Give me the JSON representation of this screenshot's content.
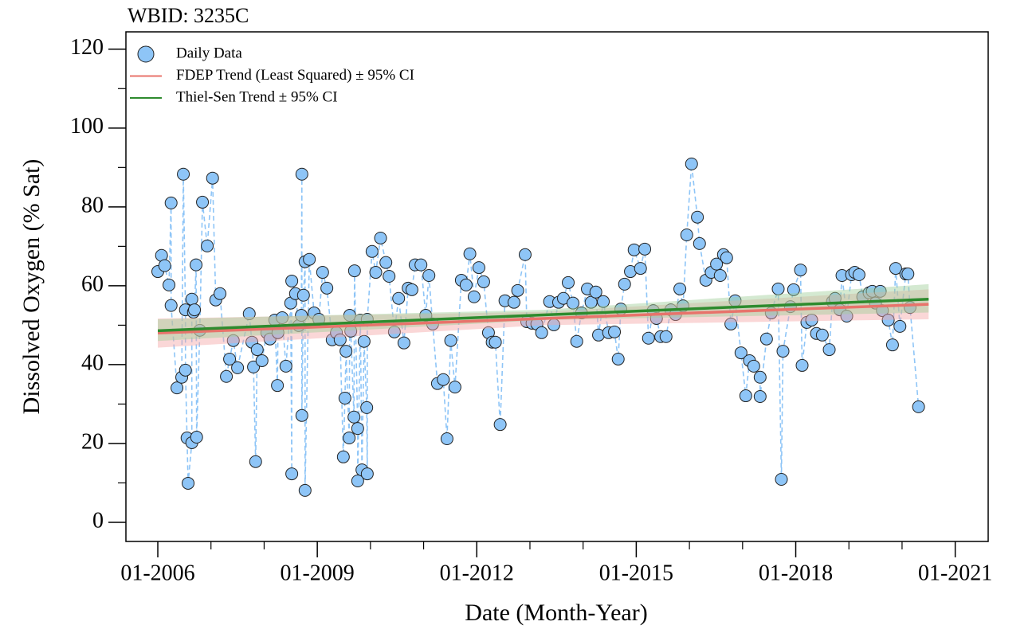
{
  "chart_data": {
    "type": "scatter",
    "title": "WBID: 3235C",
    "xlabel": "Date (Month-Year)",
    "ylabel": "Dissolved Oxygen (% Sat)",
    "xlim": [
      2005.4,
      2021.62
    ],
    "ylim": [
      -4.85,
      124.4
    ],
    "xticks": [
      {
        "value": 2006,
        "label": "01-2006"
      },
      {
        "value": 2009,
        "label": "01-2009"
      },
      {
        "value": 2012,
        "label": "01-2012"
      },
      {
        "value": 2015,
        "label": "01-2015"
      },
      {
        "value": 2018,
        "label": "01-2018"
      },
      {
        "value": 2021,
        "label": "01-2021"
      }
    ],
    "xminorticks": [
      2007,
      2008,
      2010,
      2011,
      2013,
      2014,
      2016,
      2017,
      2019,
      2020
    ],
    "yticks": [
      0,
      20,
      40,
      60,
      80,
      100,
      120
    ],
    "yminorticks": [
      10,
      30,
      50,
      70,
      90,
      110
    ],
    "legend": "top-left",
    "series": [
      {
        "name": "Daily Data",
        "type": "scatter",
        "color": "#8ec5f7",
        "x": [
          2006.0,
          2006.07,
          2006.13,
          2006.21,
          2006.25,
          2006.25,
          2006.36,
          2006.45,
          2006.48,
          2006.52,
          2006.52,
          2006.55,
          2006.57,
          2006.64,
          2006.64,
          2006.67,
          2006.69,
          2006.72,
          2006.73,
          2006.79,
          2006.84,
          2006.93,
          2007.03,
          2007.09,
          2007.17,
          2007.29,
          2007.35,
          2007.42,
          2007.5,
          2007.72,
          2007.77,
          2007.8,
          2007.84,
          2007.87,
          2007.96,
          2008.05,
          2008.11,
          2008.2,
          2008.25,
          2008.26,
          2008.34,
          2008.41,
          2008.5,
          2008.52,
          2008.52,
          2008.59,
          2008.65,
          2008.7,
          2008.71,
          2008.71,
          2008.74,
          2008.77,
          2008.77,
          2008.85,
          2008.94,
          2009.03,
          2009.1,
          2009.18,
          2009.28,
          2009.36,
          2009.43,
          2009.49,
          2009.52,
          2009.54,
          2009.6,
          2009.61,
          2009.63,
          2009.69,
          2009.7,
          2009.76,
          2009.76,
          2009.81,
          2009.84,
          2009.88,
          2009.93,
          2009.94,
          2009.94,
          2010.03,
          2010.1,
          2010.19,
          2010.29,
          2010.35,
          2010.45,
          2010.53,
          2010.63,
          2010.71,
          2010.78,
          2010.84,
          2010.95,
          2011.04,
          2011.1,
          2011.17,
          2011.26,
          2011.37,
          2011.44,
          2011.51,
          2011.59,
          2011.71,
          2011.8,
          2011.87,
          2011.95,
          2012.04,
          2012.13,
          2012.22,
          2012.29,
          2012.35,
          2012.44,
          2012.53,
          2012.7,
          2012.77,
          2012.91,
          2012.94,
          2013.04,
          2013.13,
          2013.22,
          2013.37,
          2013.45,
          2013.54,
          2013.63,
          2013.72,
          2013.81,
          2013.88,
          2013.97,
          2014.08,
          2014.15,
          2014.24,
          2014.29,
          2014.38,
          2014.48,
          2014.59,
          2014.66,
          2014.71,
          2014.78,
          2014.89,
          2014.96,
          2015.08,
          2015.16,
          2015.23,
          2015.32,
          2015.38,
          2015.46,
          2015.56,
          2015.65,
          2015.74,
          2015.82,
          2015.88,
          2015.95,
          2016.04,
          2016.15,
          2016.19,
          2016.31,
          2016.41,
          2016.51,
          2016.58,
          2016.64,
          2016.7,
          2016.78,
          2016.86,
          2016.97,
          2017.06,
          2017.13,
          2017.21,
          2017.33,
          2017.33,
          2017.45,
          2017.54,
          2017.67,
          2017.73,
          2017.76,
          2017.9,
          2017.96,
          2018.09,
          2018.12,
          2018.21,
          2018.3,
          2018.39,
          2018.5,
          2018.63,
          2018.69,
          2018.74,
          2018.83,
          2018.87,
          2018.96,
          2019.05,
          2019.11,
          2019.19,
          2019.26,
          2019.38,
          2019.44,
          2019.5,
          2019.59,
          2019.63,
          2019.74,
          2019.82,
          2019.88,
          2019.96,
          2020.07,
          2020.11,
          2020.15,
          2020.31
        ],
        "values": [
          63.6,
          67.7,
          65.1,
          60.2,
          81,
          55,
          34.1,
          36.8,
          88.3,
          53.9,
          38.6,
          21.4,
          9.9,
          20.2,
          56.6,
          53.3,
          53.9,
          65.3,
          21.6,
          48.7,
          81.2,
          70.1,
          87.3,
          56.4,
          58,
          37,
          41.4,
          46.1,
          39.2,
          52.9,
          45.7,
          39.4,
          15.4,
          43.8,
          41,
          48.1,
          46.5,
          51.3,
          34.7,
          48.1,
          51.9,
          39.6,
          55.6,
          12.3,
          61.2,
          58,
          49.9,
          52.5,
          88.3,
          27.1,
          57.6,
          66.1,
          8.1,
          66.7,
          53.1,
          51.5,
          63.4,
          59.4,
          46.3,
          48.1,
          46.3,
          16.6,
          31.5,
          43.4,
          21.4,
          52.5,
          48.5,
          26.7,
          63.8,
          23.8,
          10.5,
          51.3,
          13.3,
          45.9,
          29.1,
          12.3,
          51.5,
          68.7,
          63.4,
          72.1,
          65.9,
          62.4,
          48.3,
          56.8,
          45.5,
          59.4,
          59,
          65.3,
          65.3,
          52.5,
          62.6,
          50.3,
          35.2,
          36.2,
          21.2,
          46.1,
          34.3,
          61.4,
          60.2,
          68.1,
          57.2,
          64.6,
          61,
          48.1,
          45.7,
          45.7,
          24.8,
          56.2,
          55.8,
          58.8,
          67.9,
          50.9,
          50.5,
          50.3,
          48.1,
          56,
          50.1,
          55.8,
          56.8,
          60.8,
          55.6,
          45.9,
          53.1,
          59.2,
          55.8,
          58.4,
          47.5,
          56,
          48.1,
          48.3,
          41.4,
          54.1,
          60.4,
          63.6,
          69.1,
          64.4,
          69.3,
          46.7,
          53.7,
          51.7,
          47.1,
          47.1,
          53.9,
          52.7,
          59.2,
          54.9,
          72.9,
          90.9,
          77.4,
          70.7,
          61.4,
          63.4,
          65.5,
          62.6,
          67.9,
          67.1,
          50.3,
          56.2,
          43,
          32.1,
          41,
          39.6,
          36.8,
          31.9,
          46.5,
          53.1,
          59.2,
          10.9,
          43.4,
          54.7,
          59,
          64,
          39.8,
          50.7,
          51.3,
          47.9,
          47.5,
          43.8,
          56,
          56.8,
          53.9,
          62.6,
          52.3,
          62.8,
          63.4,
          62.8,
          57.2,
          58.2,
          58.6,
          55.6,
          58.6,
          53.7,
          51.3,
          45,
          64.4,
          49.7,
          63,
          63,
          54.5,
          29.3
        ]
      },
      {
        "name": "FDEP Trend (Least Squared) ± 95% CI",
        "type": "line",
        "color": "#e8736b",
        "band_color": "#f4a6a6",
        "x": [
          2006.0,
          2013.25,
          2020.5
        ],
        "values": [
          48.0,
          51.7,
          55.3
        ],
        "lower": [
          44.3,
          50.0,
          51.5
        ],
        "upper": [
          51.7,
          53.4,
          59.1
        ]
      },
      {
        "name": "Thiel-Sen Trend ± 95% CI",
        "type": "line",
        "color": "#2e8b2e",
        "band_color": "#9fcf9a",
        "x": [
          2006.0,
          2013.25,
          2020.5
        ],
        "values": [
          48.6,
          52.6,
          56.6
        ],
        "lower": [
          46.0,
          51.3,
          53.2
        ],
        "upper": [
          51.5,
          53.9,
          60.4
        ]
      }
    ]
  }
}
